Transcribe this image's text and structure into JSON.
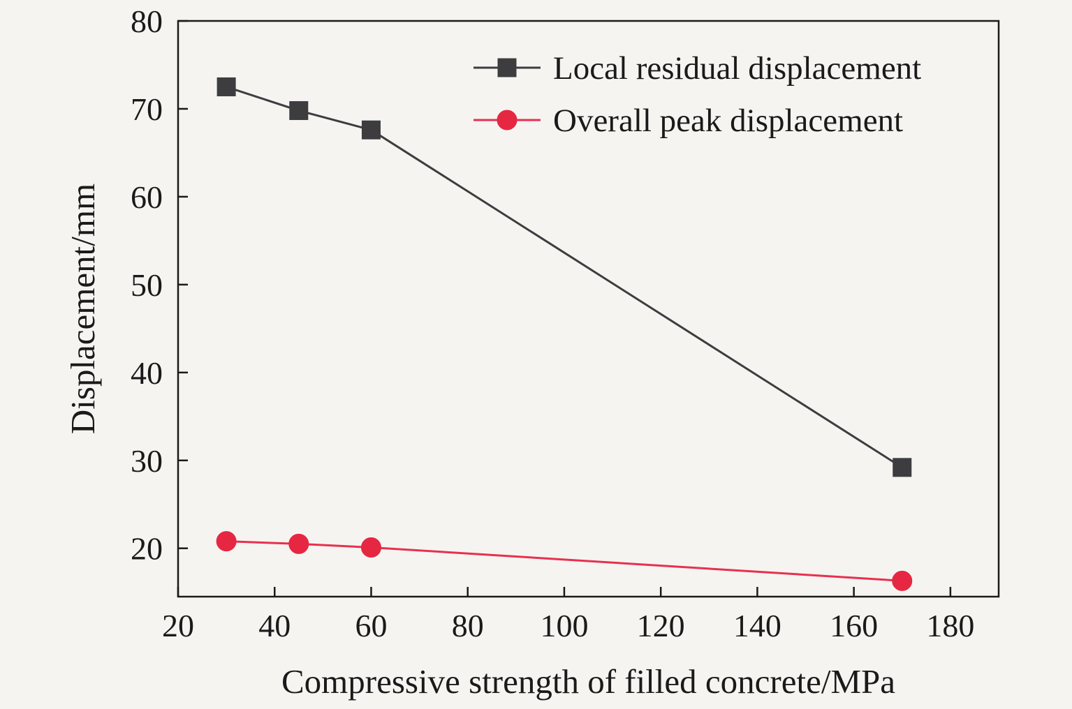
{
  "page": {
    "background": "#f5f4f1",
    "text_color": "#1a1a1a",
    "axis_color": "#1a1a1a"
  },
  "chart_data": {
    "type": "line",
    "title": "",
    "xlabel": "Compressive strength of filled concrete/MPa",
    "ylabel": "Displacement/mm",
    "xlim": [
      20,
      190
    ],
    "ylim": [
      14.5,
      80
    ],
    "xticks": [
      20,
      40,
      60,
      80,
      100,
      120,
      140,
      160,
      180
    ],
    "yticks": [
      20,
      30,
      40,
      50,
      60,
      70,
      80
    ],
    "grid": false,
    "legend_position": "top-inside",
    "series": [
      {
        "name": "Local residual displacement",
        "marker": "square",
        "color": "#3d3d40",
        "marker_color": "#3d3d40",
        "x": [
          30,
          45,
          60,
          170
        ],
        "y": [
          72.5,
          69.8,
          67.6,
          29.2
        ]
      },
      {
        "name": "Overall peak displacement",
        "marker": "circle",
        "color": "#e8304e",
        "marker_color": "#e62742",
        "x": [
          30,
          45,
          60,
          170
        ],
        "y": [
          20.8,
          20.5,
          20.1,
          16.3
        ]
      }
    ]
  }
}
